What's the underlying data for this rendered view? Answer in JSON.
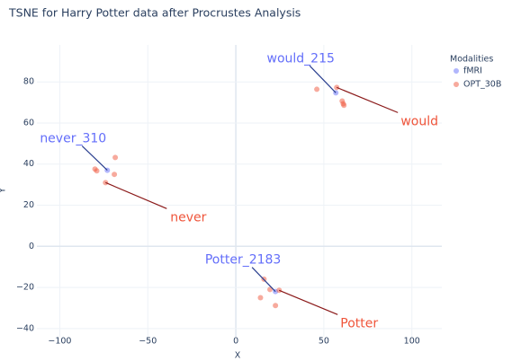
{
  "chart_data": {
    "type": "scatter",
    "title": "TSNE for Harry Potter data after Procrustes Analysis",
    "x_label": "X",
    "y_label": "Y",
    "legend_title": "Modalities",
    "legend": "top-right",
    "xlim": [
      -113,
      117
    ],
    "xticks": [
      {
        "value": -100,
        "label": "−100"
      },
      {
        "value": -50,
        "label": "−50"
      },
      0,
      50,
      100
    ],
    "ylim": [
      -44,
      98
    ],
    "yticks": [
      {
        "value": -40,
        "label": "−40"
      },
      {
        "value": -20,
        "label": "−20"
      },
      0,
      20,
      40,
      60,
      80
    ],
    "grid": true,
    "series": [
      {
        "name": "fMRI",
        "color": "#636efa",
        "x": [
          56.8,
          -73,
          22.5
        ],
        "y": [
          74.7,
          37,
          -22
        ]
      },
      {
        "name": "OPT_30B",
        "color": "#ef553b",
        "x": [
          46,
          57.3,
          60.4,
          61,
          61.4,
          -80,
          -79,
          -68.5,
          -69,
          -74,
          16,
          19.4,
          14,
          22.5,
          24.6
        ],
        "y": [
          76.4,
          77.3,
          70.7,
          69.4,
          68.6,
          37.6,
          36.7,
          43.2,
          35,
          31,
          -16,
          -21,
          -25,
          -28.8,
          -21.4
        ]
      }
    ],
    "annotations": [
      {
        "text": "would_215",
        "x": 56.8,
        "y": 74.7,
        "color": "#636efa"
      },
      {
        "text": "never_310",
        "x": -73,
        "y": 37,
        "color": "#636efa"
      },
      {
        "text": "Potter_2183",
        "x": 22.5,
        "y": -22,
        "color": "#636efa"
      },
      {
        "text": "would",
        "x": 57.3,
        "y": 77.3,
        "color": "#ef553b"
      },
      {
        "text": "never",
        "x": -74,
        "y": 31,
        "color": "#ef553b"
      },
      {
        "text": "Potter",
        "x": 24.6,
        "y": -21.4,
        "color": "#ef553b"
      }
    ]
  }
}
